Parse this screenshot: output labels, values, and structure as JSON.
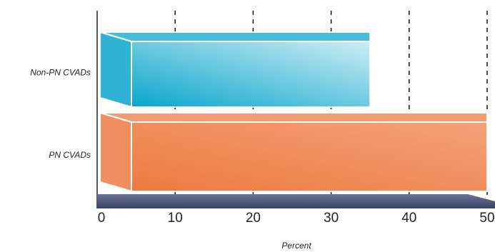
{
  "chart_data": {
    "type": "bar3d",
    "orientation": "horizontal",
    "categories": [
      "Non-PN CVADs",
      "PN CVADs"
    ],
    "values": [
      35,
      50
    ],
    "colors": [
      "#0aa5cc",
      "#ee7a40"
    ],
    "x_label": "Percent",
    "xlim": [
      0,
      50
    ],
    "xticks": [
      0,
      10,
      20,
      30,
      40,
      50
    ],
    "grid": true
  }
}
